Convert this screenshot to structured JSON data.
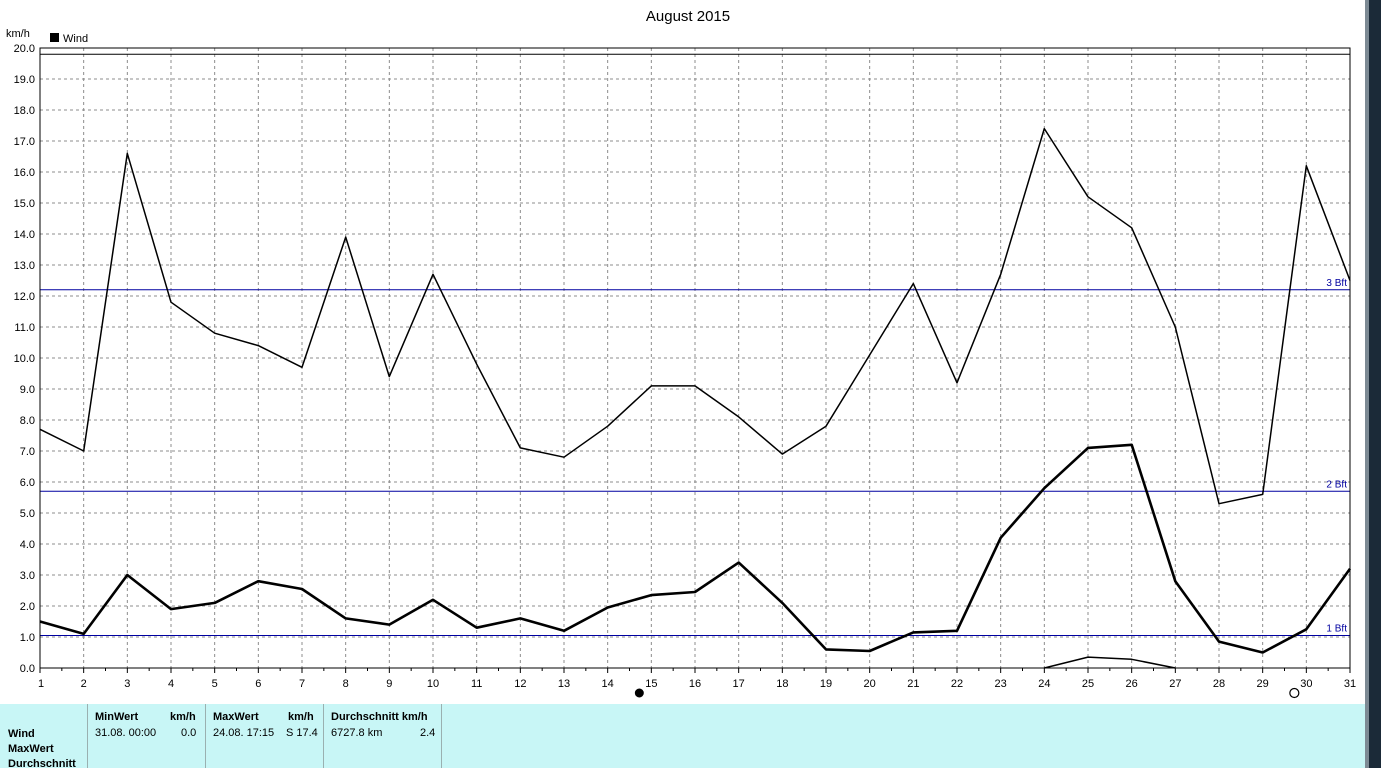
{
  "chart_data": {
    "type": "line",
    "title": "August 2015",
    "ylabel": "km/h",
    "legend": {
      "label": "Wind",
      "placement": "top-left"
    },
    "x": [
      1,
      2,
      3,
      4,
      5,
      6,
      7,
      8,
      9,
      10,
      11,
      12,
      13,
      14,
      15,
      16,
      17,
      18,
      19,
      20,
      21,
      22,
      23,
      24,
      25,
      26,
      27,
      28,
      29,
      30,
      31
    ],
    "ylim": [
      0,
      20
    ],
    "yticks": [
      "0.0",
      "1.0",
      "2.0",
      "3.0",
      "4.0",
      "5.0",
      "6.0",
      "7.0",
      "8.0",
      "9.0",
      "10.0",
      "11.0",
      "12.0",
      "13.0",
      "14.0",
      "15.0",
      "16.0",
      "17.0",
      "18.0",
      "19.0",
      "20.0"
    ],
    "grid": true,
    "series": [
      {
        "role": "max",
        "values": [
          7.7,
          7.0,
          16.6,
          11.8,
          10.8,
          10.4,
          9.7,
          13.9,
          9.4,
          12.7,
          9.8,
          7.1,
          6.8,
          7.8,
          9.1,
          9.1,
          8.1,
          6.9,
          7.8,
          10.1,
          12.4,
          9.2,
          12.7,
          17.4,
          15.2,
          14.2,
          11.0,
          5.3,
          5.6,
          16.2,
          12.5
        ]
      },
      {
        "role": "average",
        "values": [
          1.5,
          1.1,
          3.0,
          1.9,
          2.1,
          2.8,
          2.55,
          1.6,
          1.4,
          2.2,
          1.3,
          1.6,
          1.2,
          1.95,
          2.35,
          2.45,
          3.4,
          2.1,
          0.6,
          0.55,
          1.15,
          1.2,
          4.2,
          5.8,
          7.1,
          7.2,
          2.8,
          0.85,
          0.5,
          1.25,
          3.2
        ]
      },
      {
        "role": "min",
        "values": [
          null,
          null,
          null,
          null,
          null,
          null,
          null,
          null,
          null,
          null,
          null,
          null,
          null,
          null,
          null,
          null,
          null,
          null,
          null,
          null,
          null,
          null,
          null,
          0.0,
          0.35,
          0.28,
          0.0,
          null,
          null,
          null,
          null
        ]
      }
    ],
    "reference_lines": [
      {
        "value": 1.05,
        "label": "1 Bft",
        "color": "#0000a0"
      },
      {
        "value": 5.7,
        "label": "2 Bft",
        "color": "#0000a0"
      },
      {
        "value": 12.2,
        "label": "3 Bft",
        "color": "#0000a0"
      },
      {
        "value": 19.8,
        "label": "",
        "color": "#000000"
      }
    ],
    "moon_phases": [
      {
        "day": 15,
        "phase": "new"
      },
      {
        "day": 30,
        "phase": "full"
      }
    ]
  },
  "stats": {
    "row_labels": [
      "Wind",
      "MaxWert",
      "Durchschnitt"
    ],
    "min": {
      "label": "MinWert",
      "unit": "km/h",
      "when": "31.08.  00:00",
      "value": "0.0"
    },
    "max": {
      "label": "MaxWert",
      "unit": "km/h",
      "when": "24.08.  17:15",
      "value": "S 17.4"
    },
    "avg": {
      "label": "Durchschnitt km/h",
      "distance": "6727.8 km",
      "value": "2.4"
    }
  }
}
